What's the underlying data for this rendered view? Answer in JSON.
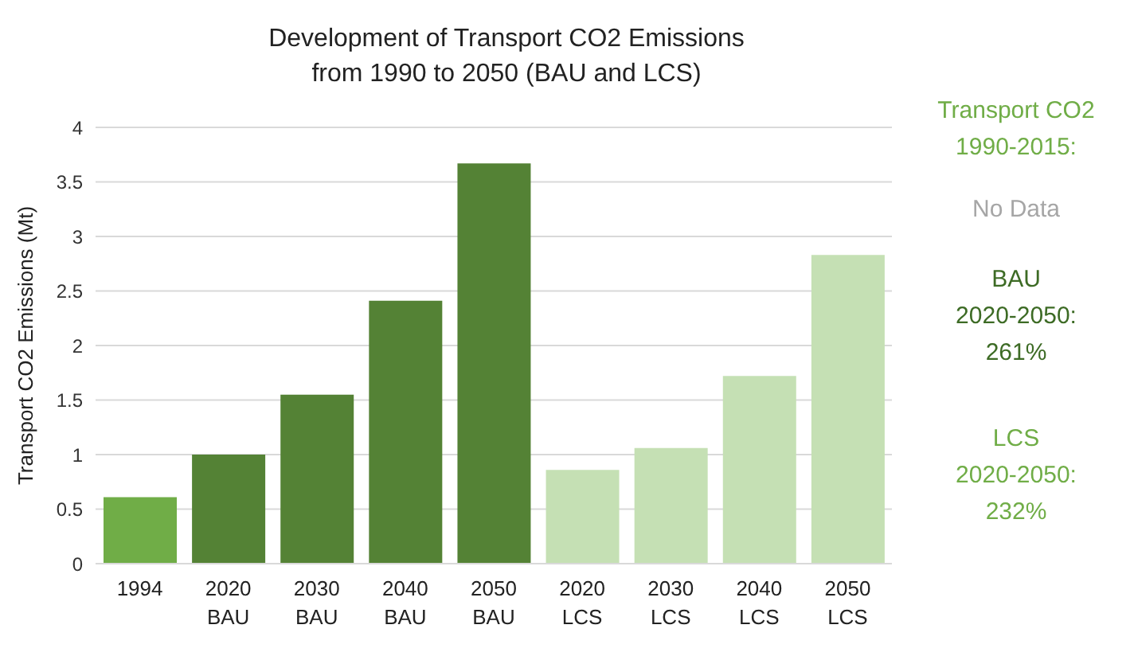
{
  "chart_data": {
    "type": "bar",
    "title": "Development of Transport CO2 Emissions\nfrom 1990 to 2050 (BAU and LCS)",
    "ylabel": "Transport CO2 Emissions (Mt)",
    "categories": [
      "1994",
      "2020\nBAU",
      "2030\nBAU",
      "2040\nBAU",
      "2050\nBAU",
      "2020\nLCS",
      "2030\nLCS",
      "2040\nLCS",
      "2050\nLCS"
    ],
    "values": [
      0.61,
      1.0,
      1.55,
      2.41,
      3.67,
      0.86,
      1.06,
      1.72,
      2.83
    ],
    "colors": [
      "#70ad47",
      "#548235",
      "#548235",
      "#548235",
      "#548235",
      "#c5e0b4",
      "#c5e0b4",
      "#c5e0b4",
      "#c5e0b4"
    ],
    "ylim": [
      0,
      4
    ],
    "yticks": [
      0,
      0.5,
      1,
      1.5,
      2,
      2.5,
      3,
      3.5,
      4
    ],
    "grid": "y",
    "legend": false,
    "annotations": [
      "Transport CO2\n1990-2015:",
      "No Data",
      "BAU\n2020-2050:\n261%",
      "LCS\n2020-2050:\n232%"
    ]
  }
}
